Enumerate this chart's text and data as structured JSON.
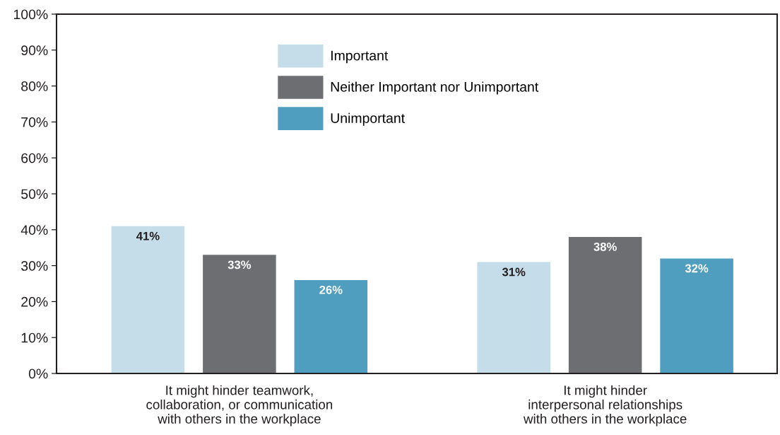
{
  "chart_data": {
    "type": "bar",
    "categories": [
      "It might hinder teamwork,\ncollaboration, or communication\nwith others in the workplace",
      "It might hinder\ninterpersonal relationships\nwith others in the workplace"
    ],
    "series": [
      {
        "name": "Important",
        "color": "#c5dce9",
        "values": [
          41,
          31
        ],
        "value_labels": [
          "41%",
          "31%"
        ]
      },
      {
        "name": "Neither Important nor Unimportant",
        "color": "#6d6e71",
        "values": [
          33,
          38
        ],
        "value_labels": [
          "33%",
          "38%"
        ]
      },
      {
        "name": "Unimportant",
        "color": "#509ebf",
        "values": [
          26,
          32
        ],
        "value_labels": [
          "26%",
          "32%"
        ]
      }
    ],
    "ylim": [
      0,
      100
    ],
    "yticks": [
      {
        "value": 0,
        "label": "0%"
      },
      {
        "value": 10,
        "label": "10%"
      },
      {
        "value": 20,
        "label": "20%"
      },
      {
        "value": 30,
        "label": "30%"
      },
      {
        "value": 40,
        "label": "40%"
      },
      {
        "value": 50,
        "label": "50%"
      },
      {
        "value": 60,
        "label": "60%"
      },
      {
        "value": 70,
        "label": "70%"
      },
      {
        "value": 80,
        "label": "80%"
      },
      {
        "value": 90,
        "label": "90%"
      },
      {
        "value": 100,
        "label": "100%"
      }
    ],
    "grid": false,
    "legend": "top"
  }
}
